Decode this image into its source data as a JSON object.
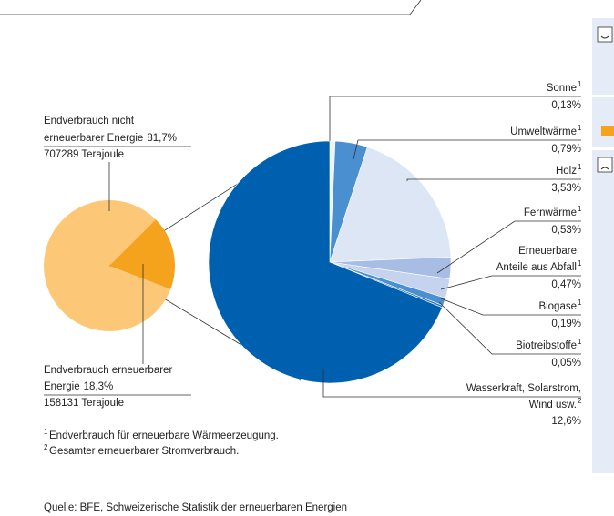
{
  "chart_data": [
    {
      "type": "pie",
      "categories": [
        [
          "Endverbrauch nicht",
          "erneuerbarer Energie"
        ],
        [
          "Endverbrauch erneuerbarer",
          "Energie"
        ]
      ],
      "values": [
        81.7,
        18.3
      ],
      "value_labels": [
        "81,7%",
        "18,3%"
      ],
      "amounts": [
        "707289 Terajoule",
        "158131 Terajoule"
      ],
      "colors": [
        "#fcc877",
        "#f5a21c"
      ]
    },
    {
      "type": "pie",
      "categories": [
        [
          "Sonne"
        ],
        [
          "Umweltwärme"
        ],
        [
          "Holz"
        ],
        [
          "Fernwärme"
        ],
        [
          "Erneuerbare",
          "Anteile aus Abfall"
        ],
        [
          "Biogase"
        ],
        [
          "Biotreibstoffe"
        ],
        [
          "Wasserkraft, Solarstrom,",
          "Wind usw."
        ]
      ],
      "notes": [
        "1",
        "1",
        "1",
        "1",
        "1",
        "1",
        "1",
        "2"
      ],
      "values": [
        0.13,
        0.79,
        3.53,
        0.53,
        0.47,
        0.19,
        0.05,
        12.6
      ],
      "value_labels": [
        "0,13%",
        "0,79%",
        "3,53%",
        "0,53%",
        "0,47%",
        "0,19%",
        "0,05%",
        "12,6%"
      ],
      "colors": [
        "#eef2fa",
        "#4a8fd0",
        "#dde6f5",
        "#a8bde3",
        "#c5d3ee",
        "#4a8fd0",
        "#2f74bf",
        "#0060b0"
      ]
    }
  ],
  "footnotes": [
    {
      "mark": "1",
      "text": "Endverbrauch für erneuerbare Wärmeerzeugung."
    },
    {
      "mark": "2",
      "text": "Gesamter erneuerbarer Stromverbrauch."
    }
  ],
  "source": "Quelle: BFE, Schweizerische Statistik der erneuerbaren Energien"
}
